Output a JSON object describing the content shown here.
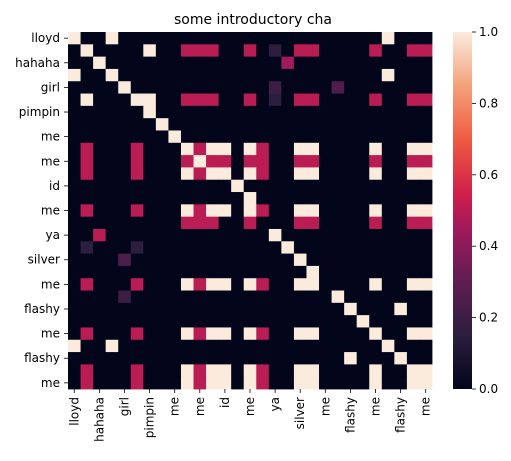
{
  "chart_data": {
    "type": "heatmap",
    "title": "some introductory cha",
    "xlabel": "",
    "ylabel": "",
    "xtick_labels": [
      "lloyd",
      "hahaha",
      "girl",
      "pimpin",
      "me",
      "me",
      "id",
      "me",
      "ya",
      "silver",
      "me",
      "flashy",
      "me",
      "flashy",
      "me"
    ],
    "ytick_labels": [
      "lloyd",
      "hahaha",
      "girl",
      "pimpin",
      "me",
      "me",
      "id",
      "me",
      "ya",
      "silver",
      "me",
      "flashy",
      "me",
      "flashy",
      "me"
    ],
    "colorbar": {
      "min": 0.0,
      "max": 1.0,
      "ticks": [
        "0.0",
        "0.2",
        "0.4",
        "0.6",
        "0.8",
        "1.0"
      ]
    },
    "matrix": [
      [
        1,
        0,
        0,
        1,
        0,
        0,
        0,
        0,
        0,
        0,
        0,
        0,
        0,
        0,
        0,
        0,
        0,
        0,
        0,
        0,
        0,
        0,
        0,
        0,
        0,
        1,
        0,
        0,
        0
      ],
      [
        0,
        1,
        0,
        0,
        0,
        0,
        1,
        0,
        0,
        0.5,
        0.5,
        0.5,
        0,
        0,
        0.5,
        0,
        0.15,
        0,
        0.5,
        0.5,
        0,
        0,
        0,
        0,
        0.5,
        0,
        0,
        0.5,
        0.5
      ],
      [
        0,
        0,
        1,
        0,
        0,
        0,
        0,
        0,
        0,
        0,
        0,
        0,
        0,
        0,
        0,
        0,
        0,
        0.45,
        0,
        0,
        0,
        0,
        0,
        0,
        0,
        0,
        0,
        0,
        0
      ],
      [
        1,
        0,
        0,
        1,
        0,
        0,
        0,
        0,
        0,
        0,
        0,
        0,
        0,
        0,
        0,
        0,
        0,
        0,
        0,
        0,
        0,
        0,
        0,
        0,
        0,
        1,
        0,
        0,
        0
      ],
      [
        0,
        0,
        0,
        0,
        1,
        0,
        0,
        0,
        0,
        0,
        0,
        0,
        0,
        0,
        0,
        0,
        0.2,
        0,
        0,
        0,
        0,
        0.25,
        0,
        0,
        0,
        0,
        0,
        0,
        0
      ],
      [
        0,
        1,
        0,
        0,
        0,
        1,
        1,
        0,
        0,
        0.5,
        0.5,
        0.5,
        0,
        0,
        0.5,
        0,
        0.15,
        0,
        0.5,
        0.5,
        0,
        0,
        0,
        0,
        0.5,
        0,
        0,
        0.5,
        0.5
      ],
      [
        0,
        0,
        0,
        0,
        0,
        0,
        1,
        0,
        0,
        0,
        0,
        0,
        0,
        0,
        0,
        0,
        0,
        0,
        0,
        0,
        0,
        0,
        0,
        0,
        0,
        0,
        0,
        0,
        0
      ],
      [
        0,
        0,
        0,
        0,
        0,
        0,
        0,
        1,
        0,
        0,
        0,
        0,
        0,
        0,
        0,
        0,
        0,
        0,
        0,
        0,
        0,
        0,
        0,
        0,
        0,
        0,
        0,
        0,
        0
      ],
      [
        0,
        0,
        0,
        0,
        0,
        0,
        0,
        0,
        1,
        0,
        0,
        0,
        0,
        0,
        0,
        0,
        0,
        0,
        0,
        0,
        0,
        0,
        0,
        0,
        0,
        0,
        0,
        0,
        0
      ],
      [
        0,
        0.5,
        0,
        0,
        0,
        0.5,
        0,
        0,
        0,
        1,
        0.5,
        1,
        1,
        0,
        1,
        0.5,
        0,
        0,
        1,
        1,
        0,
        0,
        0,
        0,
        1,
        0,
        0,
        1,
        1
      ],
      [
        0,
        0.5,
        0,
        0,
        0,
        0.5,
        0,
        0,
        0,
        0.5,
        1,
        0.5,
        0.5,
        0,
        0.5,
        0.5,
        0,
        0,
        0.5,
        0.5,
        0,
        0,
        0,
        0,
        0.5,
        0,
        0,
        0.5,
        0.5
      ],
      [
        0,
        0.5,
        0,
        0,
        0,
        0.5,
        0,
        0,
        0,
        1,
        0.5,
        1,
        1,
        0,
        1,
        0.5,
        0,
        0,
        1,
        1,
        0,
        0,
        0,
        0,
        1,
        0,
        0,
        1,
        1
      ],
      [
        0,
        0,
        0,
        0,
        0,
        0,
        0,
        0,
        0,
        0,
        0,
        0,
        0,
        1,
        0,
        0,
        0,
        0,
        0,
        0,
        0,
        0,
        0,
        0,
        0,
        0,
        0,
        0,
        0
      ],
      [
        0,
        0,
        0,
        0,
        0,
        0,
        0,
        0,
        0,
        0,
        0,
        0,
        0,
        0,
        1,
        0,
        0,
        0,
        0,
        0,
        0,
        0,
        0,
        0,
        0,
        0,
        0,
        0,
        0
      ],
      [
        0,
        0.5,
        0,
        0,
        0,
        0.5,
        0,
        0,
        0,
        1,
        0.5,
        1,
        1,
        0,
        1,
        0.5,
        0,
        0,
        1,
        1,
        0,
        0,
        0,
        0,
        1,
        0,
        0,
        1,
        1
      ],
      [
        0,
        0,
        0,
        0,
        0,
        0,
        0,
        0,
        0,
        0.5,
        0.5,
        0.5,
        0,
        0,
        0.5,
        0,
        0,
        0,
        0.5,
        0.5,
        0,
        0,
        0,
        0,
        0.5,
        0,
        0,
        0.5,
        0.5
      ],
      [
        0,
        0,
        0.5,
        0,
        0,
        0,
        0,
        0,
        0,
        0,
        0,
        0,
        0,
        0,
        0,
        0,
        1,
        0,
        0,
        0,
        0,
        0,
        0,
        0,
        0,
        0,
        0,
        0,
        0
      ],
      [
        0,
        0.15,
        0,
        0,
        0,
        0.15,
        0,
        0,
        0,
        0,
        0,
        0,
        0,
        0,
        0,
        0,
        0,
        1,
        0,
        0,
        0,
        0,
        0,
        0,
        0,
        0,
        0,
        0,
        0
      ],
      [
        0,
        0,
        0,
        0,
        0.25,
        0,
        0,
        0,
        0,
        0,
        0,
        0,
        0,
        0,
        0,
        0,
        0,
        0,
        1,
        0,
        0,
        0,
        0,
        0,
        0,
        0,
        0,
        0,
        0
      ],
      [
        0,
        0,
        0,
        0,
        0,
        0,
        0,
        0,
        0,
        0,
        0,
        0,
        0,
        0,
        0,
        0,
        0,
        0,
        0,
        1,
        0,
        0,
        0,
        0,
        0,
        0,
        0,
        0,
        0
      ],
      [
        0,
        0.5,
        0,
        0,
        0,
        0.5,
        0,
        0,
        0,
        1,
        0.5,
        1,
        1,
        0,
        1,
        0.5,
        0,
        0,
        1,
        1,
        0,
        0,
        0,
        0,
        1,
        0,
        0,
        1,
        1
      ],
      [
        0,
        0,
        0,
        0,
        0.2,
        0,
        0,
        0,
        0,
        0,
        0,
        0,
        0,
        0,
        0,
        0,
        0,
        0,
        0,
        0,
        0,
        1,
        0,
        0,
        0,
        0,
        0,
        0,
        0
      ],
      [
        0,
        0,
        0,
        0,
        0,
        0,
        0,
        0,
        0,
        0,
        0,
        0,
        0,
        0,
        0,
        0,
        0,
        0,
        0,
        0,
        0,
        0,
        1,
        0,
        0,
        0,
        1,
        0,
        0
      ],
      [
        0,
        0,
        0,
        0,
        0,
        0,
        0,
        0,
        0,
        0,
        0,
        0,
        0,
        0,
        0,
        0,
        0,
        0,
        0,
        0,
        0,
        0,
        0,
        1,
        0,
        0,
        0,
        0,
        0
      ],
      [
        0,
        0.5,
        0,
        0,
        0,
        0.5,
        0,
        0,
        0,
        1,
        0.5,
        1,
        1,
        0,
        1,
        0.5,
        0,
        0,
        1,
        1,
        0,
        0,
        0,
        0,
        1,
        0,
        0,
        1,
        1
      ],
      [
        1,
        0,
        0,
        1,
        0,
        0,
        0,
        0,
        0,
        0,
        0,
        0,
        0,
        0,
        0,
        0,
        0,
        0,
        0,
        0,
        0,
        0,
        0,
        0,
        0,
        1,
        0,
        0,
        0
      ],
      [
        0,
        0,
        0,
        0,
        0,
        0,
        0,
        0,
        0,
        0,
        0,
        0,
        0,
        0,
        0,
        0,
        0,
        0,
        0,
        0,
        0,
        0,
        1,
        0,
        0,
        0,
        1,
        0,
        0
      ],
      [
        0,
        0.5,
        0,
        0,
        0,
        0.5,
        0,
        0,
        0,
        1,
        0.5,
        1,
        1,
        0,
        1,
        0.5,
        0,
        0,
        1,
        1,
        0,
        0,
        0,
        0,
        1,
        0,
        0,
        1,
        1
      ],
      [
        0,
        0.5,
        0,
        0,
        0,
        0.5,
        0,
        0,
        0,
        1,
        0.5,
        1,
        1,
        0,
        1,
        0.5,
        0,
        0,
        1,
        1,
        0,
        0,
        0,
        0,
        1,
        0,
        0,
        1,
        1
      ]
    ]
  }
}
